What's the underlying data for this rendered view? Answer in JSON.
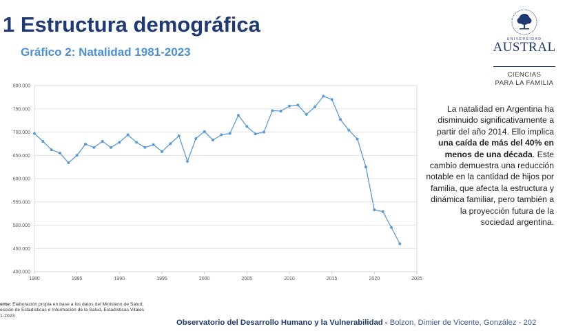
{
  "header": {
    "title": "1 Estructura demográfica",
    "subtitle": "Gráfico 2: Natalidad 1981-2023"
  },
  "logo": {
    "university_small": "UNIVERSIDAD",
    "university": "AUSTRAL",
    "division_line1": "CIENCIAS",
    "division_line2": "PARA LA FAMILIA",
    "color": "#1f3a73"
  },
  "description": {
    "part1": "La natalidad en Argentina ha disminuido significativamente a partir del año 2014. Ello implica ",
    "bold": "una caída de más del 40% en menos de una década",
    "part2": ". Este cambio demuestra una reducción notable en la cantidad de hijos por familia, que afecta la estructura y dinámica familiar, pero también a la proyección futura de la sociedad argentina."
  },
  "source": {
    "label": "ente:",
    "line1": " Elaboración propia en base a los datos del Ministerio de Salud,",
    "line2": "ección de Estadísticas e Información de la Salud, Estadísticas Vitales",
    "line3": "1-2023"
  },
  "footer": {
    "org": "Observatorio del Desarrollo Humano y la Vulnerabilidad -",
    "authors": " Bolzon, Dimier de Vicente, González - 202"
  },
  "chart_data": {
    "type": "line",
    "title": "",
    "xlabel": "",
    "ylabel": "",
    "xlim": [
      1980,
      2025
    ],
    "ylim": [
      400000,
      800000
    ],
    "x_ticks": [
      1980,
      1985,
      1990,
      1995,
      2000,
      2005,
      2010,
      2015,
      2020,
      2025
    ],
    "y_ticks": [
      400000,
      450000,
      500000,
      550000,
      600000,
      650000,
      700000,
      750000,
      800000
    ],
    "y_tick_labels": [
      "400.000",
      "450.000",
      "500.000",
      "550.000",
      "600.000",
      "650.000",
      "700.000",
      "750.000",
      "800.000"
    ],
    "grid": "horizontal",
    "color": "#5b9bd5",
    "x": [
      1980,
      1981,
      1982,
      1983,
      1984,
      1985,
      1986,
      1987,
      1988,
      1989,
      1990,
      1991,
      1992,
      1993,
      1994,
      1995,
      1996,
      1997,
      1998,
      1999,
      2000,
      2001,
      2002,
      2003,
      2004,
      2005,
      2006,
      2007,
      2008,
      2009,
      2010,
      2011,
      2012,
      2013,
      2014,
      2015,
      2016,
      2017,
      2018,
      2019,
      2020,
      2021,
      2022,
      2023
    ],
    "values": [
      697000,
      680000,
      662000,
      655000,
      634000,
      650000,
      674000,
      667000,
      680000,
      667000,
      678000,
      694000,
      678000,
      667000,
      673000,
      658000,
      675000,
      692000,
      637000,
      686000,
      701000,
      683000,
      694000,
      697000,
      736000,
      712000,
      696000,
      700000,
      746000,
      745000,
      756000,
      758000,
      738000,
      754000,
      777000,
      770000,
      727000,
      704000,
      685000,
      625000,
      533000,
      529000,
      495000,
      460000
    ]
  }
}
